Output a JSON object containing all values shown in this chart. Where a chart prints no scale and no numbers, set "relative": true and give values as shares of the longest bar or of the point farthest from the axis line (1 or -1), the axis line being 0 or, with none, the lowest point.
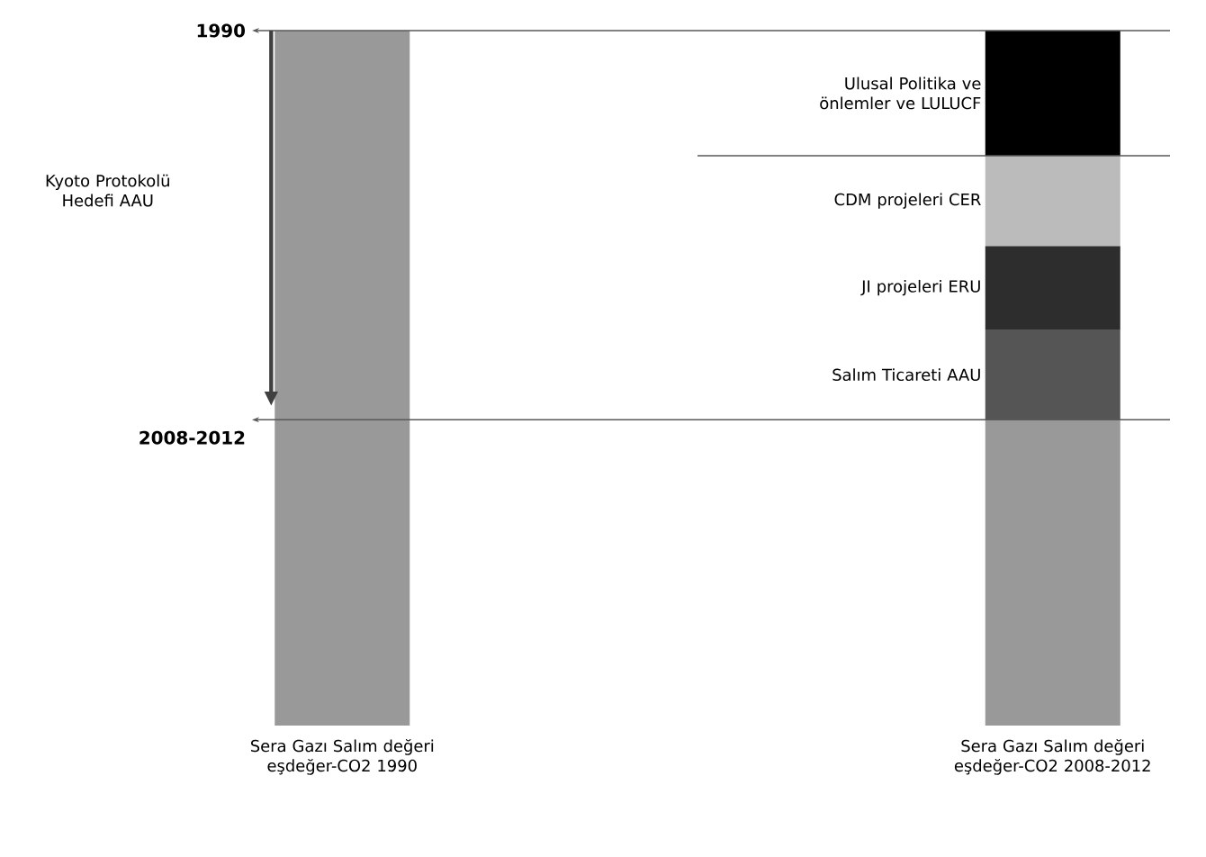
{
  "chart_data": {
    "type": "bar",
    "stacked": true,
    "relative": true,
    "categories": [
      "Sera Gazı Salım değeri eşdeğer-CO2 1990",
      "Sera Gazı Salım değeri eşdeğer-CO2 2008-2012"
    ],
    "series": [
      {
        "color": "#999999",
        "values": [
          1,
          0.44
        ]
      },
      {
        "name": "Salım Ticareti AAU",
        "color": "#555555",
        "values": [
          null,
          0.13
        ]
      },
      {
        "name": "JI projeleri ERU",
        "color": "#2d2d2d",
        "values": [
          null,
          0.12
        ]
      },
      {
        "name": "CDM projeleri CER",
        "color": "#bbbbbb",
        "values": [
          null,
          0.13
        ]
      },
      {
        "name": "Ulusal Politika ve önlemler ve LULUCF",
        "color": "#000000",
        "values": [
          null,
          0.18
        ]
      }
    ],
    "ref_lines": [
      {
        "axis": "y",
        "value": 1
      },
      {
        "axis": "y",
        "value": 0.44
      },
      {
        "axis": "y",
        "value": 0.82
      }
    ],
    "annotations": [
      "1990",
      "2008-2012",
      "Kyoto Protokolü Hedefi AAU"
    ]
  }
}
